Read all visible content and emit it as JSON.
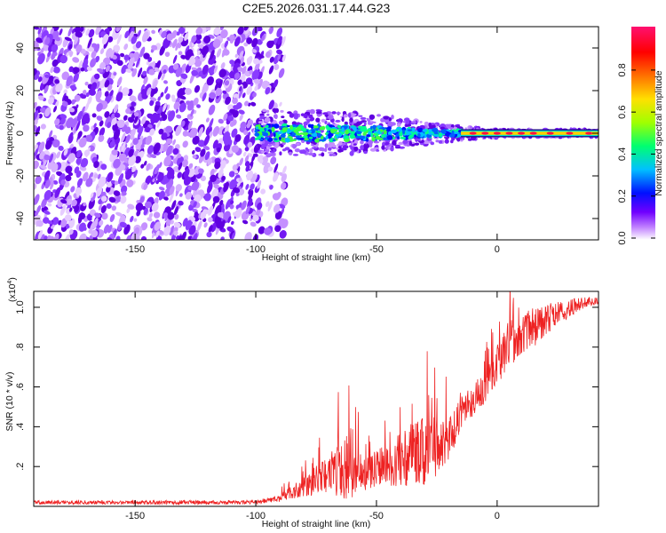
{
  "title": "C2E5.2026.031.17.44.G23",
  "chart_data": [
    {
      "type": "heatmap",
      "name": "spectrogram",
      "xlabel": "Height of straight line (km)",
      "ylabel": "Frequency (Hz)",
      "xlim": [
        -192,
        42
      ],
      "ylim": [
        -50,
        50
      ],
      "xticks": [
        -150,
        -100,
        -50,
        0
      ],
      "yticks": [
        -40,
        -20,
        0,
        20,
        40
      ],
      "noise_region_x": [
        -192,
        -92
      ],
      "signal_region_x": [
        -100,
        42
      ],
      "carrier_frequency": 0,
      "signal_frequency_spread": [
        {
          "x": -100,
          "spread": 6
        },
        {
          "x": -75,
          "spread": 6
        },
        {
          "x": -50,
          "spread": 5
        },
        {
          "x": -30,
          "spread": 3
        },
        {
          "x": -15,
          "spread": 2
        },
        {
          "x": 0,
          "spread": 1
        },
        {
          "x": 40,
          "spread": 1
        }
      ],
      "colorbar": {
        "label": "Normalized spectral amplitude",
        "range": [
          0,
          1
        ],
        "ticks": [
          "0.0",
          "0.2",
          "0.4",
          "0.6",
          "0.8"
        ],
        "colors": [
          "#ffffff",
          "#c080ff",
          "#7000ff",
          "#0010ff",
          "#00c0ff",
          "#00ff70",
          "#a0ff00",
          "#ffe000",
          "#ff7000",
          "#ff0000",
          "#ff1070"
        ]
      }
    },
    {
      "type": "line",
      "name": "snr",
      "xlabel": "Height of straight line (km)",
      "ylabel": "SNR (10 * v/v)",
      "scale_label": "(x10",
      "scale_exponent": "4",
      "xlim": [
        -192,
        42
      ],
      "ylim": [
        0,
        1.08
      ],
      "xticks": [
        -150,
        -100,
        -50,
        0
      ],
      "yticks": [
        0.2,
        0.4,
        0.6,
        0.8,
        1.0
      ],
      "series_color": "#ee2222",
      "envelope": [
        {
          "x": -192,
          "mean": 0.02,
          "spread": 0.01
        },
        {
          "x": -100,
          "mean": 0.02,
          "spread": 0.01
        },
        {
          "x": -90,
          "mean": 0.04,
          "spread": 0.02
        },
        {
          "x": -80,
          "mean": 0.1,
          "spread": 0.05
        },
        {
          "x": -70,
          "mean": 0.16,
          "spread": 0.1
        },
        {
          "x": -62,
          "mean": 0.2,
          "spread": 0.17
        },
        {
          "x": -55,
          "mean": 0.16,
          "spread": 0.08
        },
        {
          "x": -48,
          "mean": 0.2,
          "spread": 0.1
        },
        {
          "x": -40,
          "mean": 0.24,
          "spread": 0.14
        },
        {
          "x": -30,
          "mean": 0.28,
          "spread": 0.18
        },
        {
          "x": -20,
          "mean": 0.32,
          "spread": 0.12
        },
        {
          "x": -15,
          "mean": 0.47,
          "spread": 0.08
        },
        {
          "x": -5,
          "mean": 0.6,
          "spread": 0.08
        },
        {
          "x": 5,
          "mean": 0.82,
          "spread": 0.12
        },
        {
          "x": 15,
          "mean": 0.9,
          "spread": 0.1
        },
        {
          "x": 25,
          "mean": 0.97,
          "spread": 0.06
        },
        {
          "x": 35,
          "mean": 1.02,
          "spread": 0.03
        },
        {
          "x": 42,
          "mean": 1.03,
          "spread": 0.02
        }
      ]
    }
  ]
}
